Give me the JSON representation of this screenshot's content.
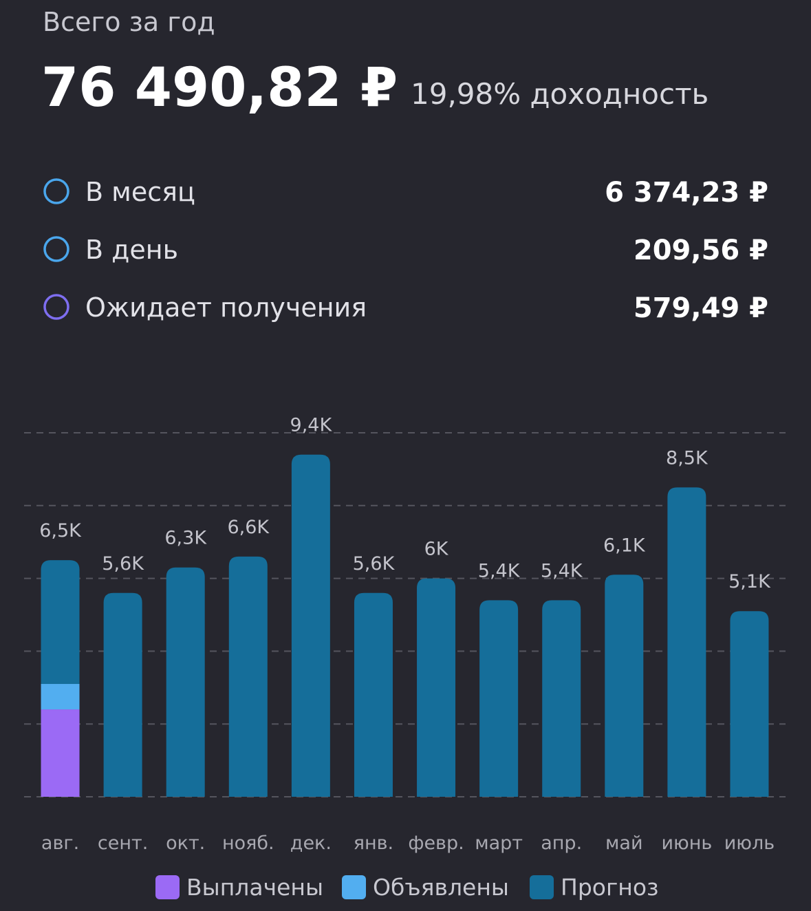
{
  "header": {
    "title": "Всего за год",
    "total": "76 490,82 ₽",
    "yield": "19,98% доходность"
  },
  "summary": [
    {
      "label": "В месяц",
      "value": "6 374,23 ₽",
      "color": "#4aa6ec"
    },
    {
      "label": "В день",
      "value": "209,56 ₽",
      "color": "#4aa6ec"
    },
    {
      "label": "Ожидает получения",
      "value": "579,49 ₽",
      "color": "#7e6ef0"
    }
  ],
  "chart_data": {
    "type": "stacked_bar",
    "categories": [
      "авг.",
      "сент.",
      "окт.",
      "нояб.",
      "дек.",
      "янв.",
      "февр.",
      "март",
      "апр.",
      "май",
      "июнь",
      "июль"
    ],
    "series": [
      {
        "name": "Выплачены",
        "color": "#9b6af5",
        "values": [
          2400,
          0,
          0,
          0,
          0,
          0,
          0,
          0,
          0,
          0,
          0,
          0
        ]
      },
      {
        "name": "Объявлены",
        "color": "#52aef0",
        "values": [
          700,
          0,
          0,
          0,
          0,
          0,
          0,
          0,
          0,
          0,
          0,
          0
        ]
      },
      {
        "name": "Прогноз",
        "color": "#156e9a",
        "values": [
          3400,
          5600,
          6300,
          6600,
          9400,
          5600,
          6000,
          5400,
          5400,
          6100,
          8500,
          5100
        ]
      }
    ],
    "totals": {
      "values": [
        6500,
        5600,
        6300,
        6600,
        9400,
        5600,
        6000,
        5400,
        5400,
        6100,
        8500,
        5100
      ],
      "value_labels": [
        "6,5K",
        "5,6K",
        "6,3K",
        "6,6K",
        "9,4K",
        "5,6K",
        "6K",
        "5,4K",
        "5,4K",
        "6,1K",
        "8,5K",
        "5,1K"
      ]
    },
    "ylim": [
      0,
      10000
    ],
    "yticks": [
      0,
      2000,
      4000,
      6000,
      8000,
      10000
    ],
    "grid": true,
    "legend": "bottom"
  }
}
